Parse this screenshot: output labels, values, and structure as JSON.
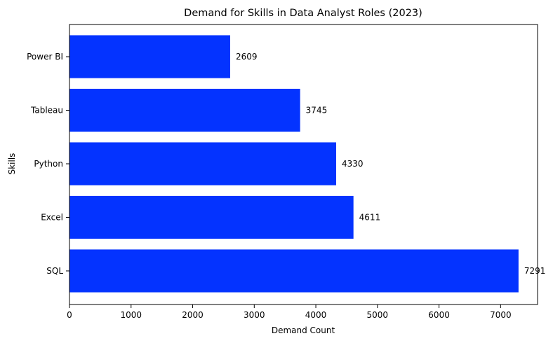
{
  "chart_data": {
    "type": "bar",
    "orientation": "horizontal",
    "title": "Demand for Skills in Data Analyst Roles (2023)",
    "xlabel": "Demand Count",
    "ylabel": "Skills",
    "categories": [
      "SQL",
      "Excel",
      "Python",
      "Tableau",
      "Power BI"
    ],
    "values": [
      7291,
      4611,
      4330,
      3745,
      2609
    ],
    "xlim": [
      0,
      7600
    ],
    "xticks": [
      0,
      1000,
      2000,
      3000,
      4000,
      5000,
      6000,
      7000
    ],
    "grid": false,
    "legend": "none",
    "bar_color": "#0433ff"
  }
}
